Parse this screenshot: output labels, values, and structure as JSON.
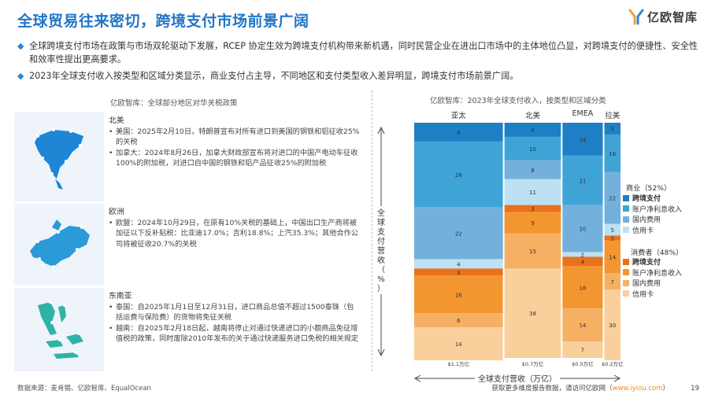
{
  "header": {
    "title": "全球贸易往来密切，跨境支付市场前景广阔",
    "logo_text": "亿欧智库"
  },
  "bullets": [
    "全球跨境支付市场在政策与市场双轮驱动下发展，RCEP 协定生效为跨境支付机构带来新机遇，同时民营企业在进出口市场中的主体地位凸显，对跨境支付的便捷性、安全性和效率性提出更高要求。",
    "2023年全球支付收入按类型和区域分类显示，商业支付占主导，不同地区和支付类型收入差异明显，跨境支付市场前景广阔。"
  ],
  "left_panel": {
    "title": "亿欧智库：全球部分地区对华关税政策",
    "regions": [
      {
        "name": "北美",
        "items": [
          "美国：2025年2月10日，特朗普宣布对所有进口到美国的钢铁和铝征收25%的关税",
          "加拿大：2024年8月26日，加拿大财政部宣布将对进口的中国产电动车征收100%的附加税，对进口自中国的钢铁和铝产品征收25%的附加税"
        ]
      },
      {
        "name": "欧洲",
        "items": [
          "欧盟：2024年10月29日，在原有10%关税的基础上，中国出口生产商将被加征以下反补贴税：比亚迪17.0%；吉利18.8%；上汽35.3%；其他合作公司将被征收20.7%的关税"
        ]
      },
      {
        "name": "东南亚",
        "items": [
          "泰国：自2025年1月1日至12月31日，进口商品总值不超过1500泰铢（包括运费与保险费）的货物将免征关税",
          "越南：自2025年2月18日起，越南将停止对通过快递进口的小额商品免征增值税的政策，同时废除2010年发布的关于通过快递服务进口免税的相关规定"
        ]
      }
    ]
  },
  "chart_data": {
    "type": "bar",
    "variant": "marimekko",
    "title": "亿欧智库：2023年全球支付收入，按类型和区域分类",
    "ylabel": "全球支付营收（%）",
    "xlabel": "全球支付营收（万亿）",
    "categories": [
      "亚太",
      "北美",
      "EMEA",
      "拉美"
    ],
    "category_totals": [
      "$1.1万亿",
      "$0.7万亿",
      "$0.5万亿",
      "$0.2万亿"
    ],
    "category_widths": [
      1.1,
      0.7,
      0.5,
      0.2
    ],
    "series": [
      {
        "name": "跨境支付",
        "group": "商业",
        "color": "#1f7fc4",
        "values": [
          8,
          6,
          14,
          5
        ]
      },
      {
        "name": "账户净利息收入",
        "group": "商业",
        "color": "#3fa3d6",
        "values": [
          28,
          10,
          21,
          16
        ]
      },
      {
        "name": "国内费用",
        "group": "商业",
        "color": "#73b1dc",
        "values": [
          22,
          8,
          20,
          22
        ]
      },
      {
        "name": "信用卡",
        "group": "商业",
        "color": "#bde0f3",
        "values": [
          4,
          11,
          2,
          5
        ]
      },
      {
        "name": "跨境支付",
        "group": "消费者",
        "color": "#e8711a",
        "values": [
          3,
          3,
          4,
          2
        ]
      },
      {
        "name": "账户净利息收入",
        "group": "消费者",
        "color": "#f4962f",
        "values": [
          16,
          9,
          18,
          14
        ]
      },
      {
        "name": "国内费用",
        "group": "消费者",
        "color": "#f6b064",
        "values": [
          6,
          15,
          14,
          7
        ]
      },
      {
        "name": "信用卡",
        "group": "消费者",
        "color": "#f9cf9b",
        "values": [
          14,
          38,
          7,
          30
        ]
      }
    ],
    "legend": {
      "groups": [
        {
          "label": "商业（52%）",
          "items": [
            "跨境支付",
            "账户净利息收入",
            "国内费用",
            "信用卡"
          ],
          "colors": [
            "#1f7fc4",
            "#3fa3d6",
            "#73b1dc",
            "#bde0f3"
          ]
        },
        {
          "label": "消费者（48%）",
          "items": [
            "跨境支付",
            "账户净利息收入",
            "国内费用",
            "信用卡"
          ],
          "colors": [
            "#e8711a",
            "#f4962f",
            "#f6b064",
            "#f9cf9b"
          ]
        }
      ],
      "position": "right"
    }
  },
  "footer": {
    "source": "数据来源：麦肯锡、亿欧智库、EqualOcean",
    "cta_text": "获取更多维度报告数据，请访问亿欧网（",
    "cta_link": "www.iyiou.com",
    "cta_end": "）",
    "page": "19"
  }
}
